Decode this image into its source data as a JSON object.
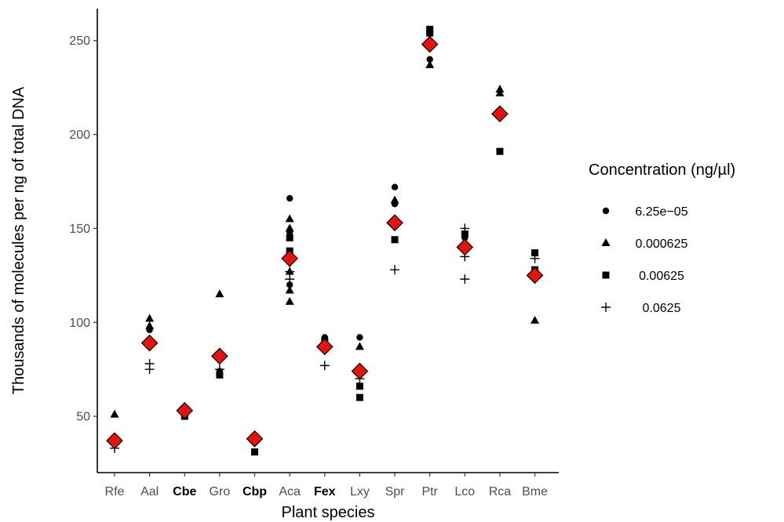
{
  "chart_data": {
    "type": "scatter",
    "xlabel": "Plant species",
    "ylabel": "Thousands of molecules per ng of total DNA",
    "ylim": [
      20,
      267
    ],
    "yticks": [
      50,
      100,
      150,
      200,
      250
    ],
    "categories": [
      "Rfe",
      "Aal",
      "Cbe",
      "Gro",
      "Cbp",
      "Aca",
      "Fex",
      "Lxy",
      "Spr",
      "Ptr",
      "Lco",
      "Rca",
      "Bme"
    ],
    "bold_categories": [
      "Cbe",
      "Cbp",
      "Fex"
    ],
    "grid": false,
    "legend": {
      "title": "Concentration (ng/µl)",
      "placement": "right",
      "entries": [
        {
          "label": "6.25e−05",
          "shape": "circle"
        },
        {
          "label": "0.000625",
          "shape": "triangle"
        },
        {
          "label": "0.00625",
          "shape": "square"
        },
        {
          "label": "0.0625",
          "shape": "plus"
        }
      ]
    },
    "series": [
      {
        "name": "6.25e−05",
        "shape": "circle",
        "points": [
          {
            "x": "Aal",
            "y": 96
          },
          {
            "x": "Gro",
            "y": 74
          },
          {
            "x": "Aca",
            "y": 166
          },
          {
            "x": "Aca",
            "y": 148
          },
          {
            "x": "Aca",
            "y": 146
          },
          {
            "x": "Aca",
            "y": 120
          },
          {
            "x": "Fex",
            "y": 92
          },
          {
            "x": "Lxy",
            "y": 92
          },
          {
            "x": "Spr",
            "y": 172
          },
          {
            "x": "Spr",
            "y": 163
          },
          {
            "x": "Ptr",
            "y": 240
          },
          {
            "x": "Lco",
            "y": 145
          },
          {
            "x": "Rca",
            "y": 209
          },
          {
            "x": "Bme",
            "y": 127
          }
        ]
      },
      {
        "name": "0.000625",
        "shape": "triangle",
        "points": [
          {
            "x": "Rfe",
            "y": 51
          },
          {
            "x": "Aal",
            "y": 102
          },
          {
            "x": "Aal",
            "y": 98
          },
          {
            "x": "Gro",
            "y": 115
          },
          {
            "x": "Aca",
            "y": 155
          },
          {
            "x": "Aca",
            "y": 150
          },
          {
            "x": "Aca",
            "y": 127
          },
          {
            "x": "Aca",
            "y": 117
          },
          {
            "x": "Aca",
            "y": 111
          },
          {
            "x": "Lxy",
            "y": 87
          },
          {
            "x": "Spr",
            "y": 165
          },
          {
            "x": "Ptr",
            "y": 237
          },
          {
            "x": "Rca",
            "y": 224
          },
          {
            "x": "Rca",
            "y": 222
          },
          {
            "x": "Bme",
            "y": 101
          }
        ]
      },
      {
        "name": "0.00625",
        "shape": "square",
        "points": [
          {
            "x": "Cbe",
            "y": 50
          },
          {
            "x": "Gro",
            "y": 72
          },
          {
            "x": "Cbp",
            "y": 31
          },
          {
            "x": "Aca",
            "y": 145
          },
          {
            "x": "Aca",
            "y": 138
          },
          {
            "x": "Fex",
            "y": 90
          },
          {
            "x": "Lxy",
            "y": 66
          },
          {
            "x": "Lxy",
            "y": 60
          },
          {
            "x": "Spr",
            "y": 144
          },
          {
            "x": "Ptr",
            "y": 256
          },
          {
            "x": "Ptr",
            "y": 254
          },
          {
            "x": "Lco",
            "y": 147
          },
          {
            "x": "Rca",
            "y": 191
          },
          {
            "x": "Bme",
            "y": 137
          },
          {
            "x": "Bme",
            "y": 128
          }
        ]
      },
      {
        "name": "0.0625",
        "shape": "plus",
        "points": [
          {
            "x": "Rfe",
            "y": 33
          },
          {
            "x": "Aal",
            "y": 78
          },
          {
            "x": "Aal",
            "y": 75
          },
          {
            "x": "Cbe",
            "y": 55
          },
          {
            "x": "Gro",
            "y": 75
          },
          {
            "x": "Aca",
            "y": 127
          },
          {
            "x": "Aca",
            "y": 123
          },
          {
            "x": "Fex",
            "y": 77
          },
          {
            "x": "Lxy",
            "y": 70
          },
          {
            "x": "Spr",
            "y": 128
          },
          {
            "x": "Lco",
            "y": 150
          },
          {
            "x": "Lco",
            "y": 135
          },
          {
            "x": "Lco",
            "y": 123
          },
          {
            "x": "Bme",
            "y": 134
          },
          {
            "x": "Bme",
            "y": 124
          }
        ]
      },
      {
        "shape": "diamond",
        "color": "#e8120c",
        "points": [
          {
            "x": "Rfe",
            "y": 37
          },
          {
            "x": "Aal",
            "y": 89
          },
          {
            "x": "Cbe",
            "y": 53
          },
          {
            "x": "Gro",
            "y": 82
          },
          {
            "x": "Cbp",
            "y": 38
          },
          {
            "x": "Aca",
            "y": 134
          },
          {
            "x": "Fex",
            "y": 87
          },
          {
            "x": "Lxy",
            "y": 74
          },
          {
            "x": "Spr",
            "y": 153
          },
          {
            "x": "Ptr",
            "y": 248
          },
          {
            "x": "Lco",
            "y": 140
          },
          {
            "x": "Rca",
            "y": 211
          },
          {
            "x": "Bme",
            "y": 125
          }
        ]
      }
    ]
  }
}
